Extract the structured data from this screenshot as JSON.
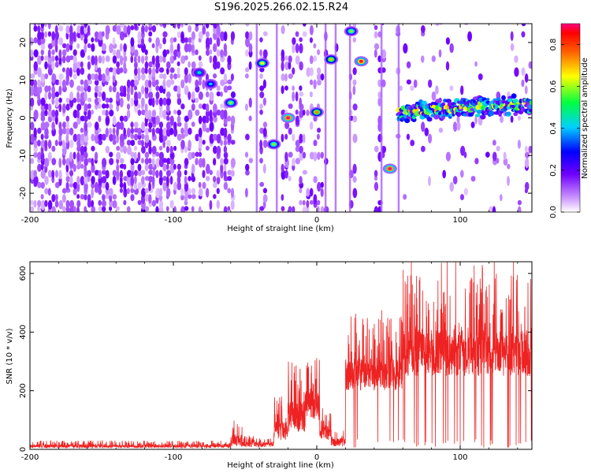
{
  "title": "S196.2025.266.02.15.R24",
  "chart_data": [
    {
      "type": "heatmap",
      "xlabel": "Height of straight line (km)",
      "ylabel": "Frequency (Hz)",
      "xlim": [
        -200,
        150
      ],
      "ylim": [
        -25,
        25
      ],
      "xticks": [
        -200,
        -100,
        0,
        100
      ],
      "yticks": [
        -20,
        -10,
        0,
        10,
        20
      ],
      "colorbar": {
        "label": "Normalized spectral amplitude",
        "range": [
          0.0,
          0.9
        ],
        "ticks": [
          "0.0",
          "0.2",
          "0.4",
          "0.6",
          "0.8"
        ],
        "colormap": [
          "#ffffff",
          "#b873ff",
          "#7000ff",
          "#0000ff",
          "#00d0ff",
          "#00ff40",
          "#ffff00",
          "#ff8000",
          "#ff0000",
          "#ff0080"
        ]
      },
      "blank_intervals_km": [
        [
          -58,
          -50
        ],
        [
          -46,
          -40
        ],
        [
          -34,
          -25
        ],
        [
          8,
          12
        ],
        [
          14,
          22
        ],
        [
          27,
          40
        ],
        [
          48,
          56
        ]
      ],
      "strong_features": [
        {
          "x": -82,
          "freq": 12,
          "amp": 0.45
        },
        {
          "x": -74,
          "freq": 9,
          "amp": 0.4
        },
        {
          "x": -60,
          "freq": 4,
          "amp": 0.55
        },
        {
          "x": -38,
          "freq": 14.5,
          "amp": 0.6
        },
        {
          "x": -30,
          "freq": -7,
          "amp": 0.55
        },
        {
          "x": -20,
          "freq": 0,
          "amp": 0.9
        },
        {
          "x": 0,
          "freq": 1.5,
          "amp": 0.7
        },
        {
          "x": 10,
          "freq": 15.5,
          "amp": 0.65
        },
        {
          "x": 24,
          "freq": 23,
          "amp": 0.55
        },
        {
          "x": 31,
          "freq": 15,
          "amp": 0.85
        },
        {
          "x": 51,
          "freq": -13.5,
          "amp": 0.9
        }
      ],
      "ridge": {
        "x_start": 57,
        "x_end": 150,
        "freq_start": 1.5,
        "freq_end": 3.5,
        "amp": 0.6
      }
    },
    {
      "type": "line",
      "xlabel": "Height of straight line (km)",
      "ylabel": "SNR (10 * v/v)",
      "xlim": [
        -200,
        150
      ],
      "ylim": [
        0,
        640
      ],
      "xticks": [
        -200,
        -100,
        0,
        100
      ],
      "yticks": [
        0,
        200,
        400,
        600
      ],
      "color": "#ee2222",
      "series": [
        {
          "name": "SNR",
          "segments": [
            {
              "x0": -200,
              "x1": -60,
              "base": 5,
              "noise": 25
            },
            {
              "x0": -60,
              "x1": -52,
              "base": 10,
              "noise": 90
            },
            {
              "x0": -52,
              "x1": -30,
              "base": 8,
              "noise": 40
            },
            {
              "x0": -30,
              "x1": -20,
              "base": 30,
              "noise": 150
            },
            {
              "x0": -20,
              "x1": -8,
              "base": 60,
              "noise": 240
            },
            {
              "x0": -8,
              "x1": 2,
              "base": 100,
              "noise": 220
            },
            {
              "x0": 2,
              "x1": 10,
              "base": 30,
              "noise": 120
            },
            {
              "x0": 10,
              "x1": 20,
              "base": 10,
              "noise": 60
            },
            {
              "x0": 20,
              "x1": 60,
              "base": 200,
              "noise": 250
            },
            {
              "x0": 60,
              "x1": 150,
              "base": 250,
              "noise": 350
            }
          ]
        }
      ]
    }
  ]
}
